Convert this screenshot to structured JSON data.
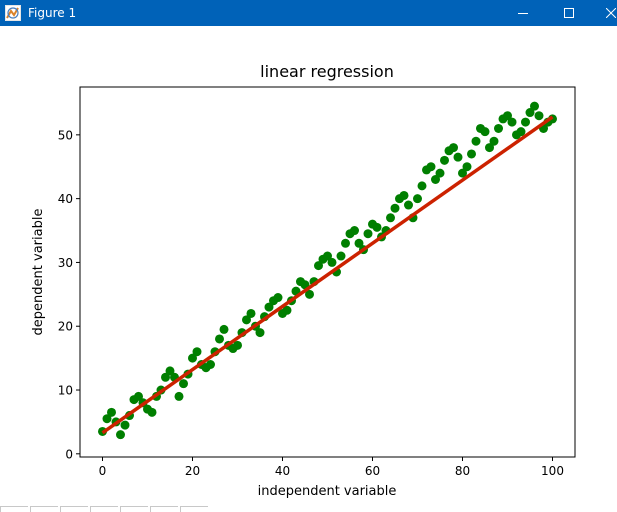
{
  "window": {
    "title": "Figure 1",
    "icons": {
      "app": "matplotlib-figure-icon",
      "minimize": "minimize-icon",
      "maximize": "maximize-icon",
      "close": "close-icon"
    },
    "titlebar_color": "#0062b8"
  },
  "chart_data": {
    "type": "scatter",
    "title": "linear regression",
    "xlabel": "independent variable",
    "ylabel": "dependent variable",
    "xlim": [
      -5,
      105
    ],
    "ylim": [
      -0.5,
      57.5
    ],
    "xticks": [
      0,
      20,
      40,
      60,
      80,
      100
    ],
    "yticks": [
      0,
      10,
      20,
      30,
      40,
      50
    ],
    "grid": false,
    "series": [
      {
        "kind": "scatter",
        "color": "#007f00",
        "x": [
          0,
          1,
          2,
          3,
          4,
          5,
          6,
          7,
          8,
          9,
          10,
          11,
          12,
          13,
          14,
          15,
          16,
          17,
          18,
          19,
          20,
          21,
          22,
          23,
          24,
          25,
          26,
          27,
          28,
          29,
          30,
          31,
          32,
          33,
          34,
          35,
          36,
          37,
          38,
          39,
          40,
          41,
          42,
          43,
          44,
          45,
          46,
          47,
          48,
          49,
          50,
          51,
          52,
          53,
          54,
          55,
          56,
          57,
          58,
          59,
          60,
          61,
          62,
          63,
          64,
          65,
          66,
          67,
          68,
          69,
          70,
          71,
          72,
          73,
          74,
          75,
          76,
          77,
          78,
          79,
          80,
          81,
          82,
          83,
          84,
          85,
          86,
          87,
          88,
          89,
          90,
          91,
          92,
          93,
          94,
          95,
          96,
          97,
          98,
          99,
          100
        ],
        "y": [
          3.5,
          5.5,
          6.5,
          5,
          3,
          4.5,
          6,
          8.5,
          9,
          8,
          7,
          6.5,
          9,
          10,
          12,
          13,
          12,
          9,
          11,
          12.5,
          15,
          16,
          14,
          13.5,
          14,
          16,
          18,
          19.5,
          17,
          16.5,
          17,
          19,
          21,
          22,
          20,
          19,
          21.5,
          23,
          24,
          24.5,
          22,
          22.5,
          24,
          25.5,
          27,
          26.5,
          25,
          27,
          29.5,
          30.5,
          31,
          30,
          28.5,
          31,
          33,
          34.5,
          35,
          33,
          32,
          34.5,
          36,
          35.5,
          34,
          35,
          37,
          38.5,
          40,
          40.5,
          39,
          37,
          40,
          42,
          44.5,
          45,
          43,
          44,
          46,
          47.5,
          48,
          46.5,
          44,
          45,
          47,
          49,
          51,
          50.5,
          48,
          49,
          51,
          52.5,
          53,
          52,
          50,
          50.5,
          52,
          53.5,
          54.5,
          53,
          51,
          52,
          52.5
        ]
      },
      {
        "kind": "line",
        "color": "#cc2200",
        "x": [
          0,
          100
        ],
        "y": [
          3.3,
          52.8
        ]
      }
    ]
  }
}
